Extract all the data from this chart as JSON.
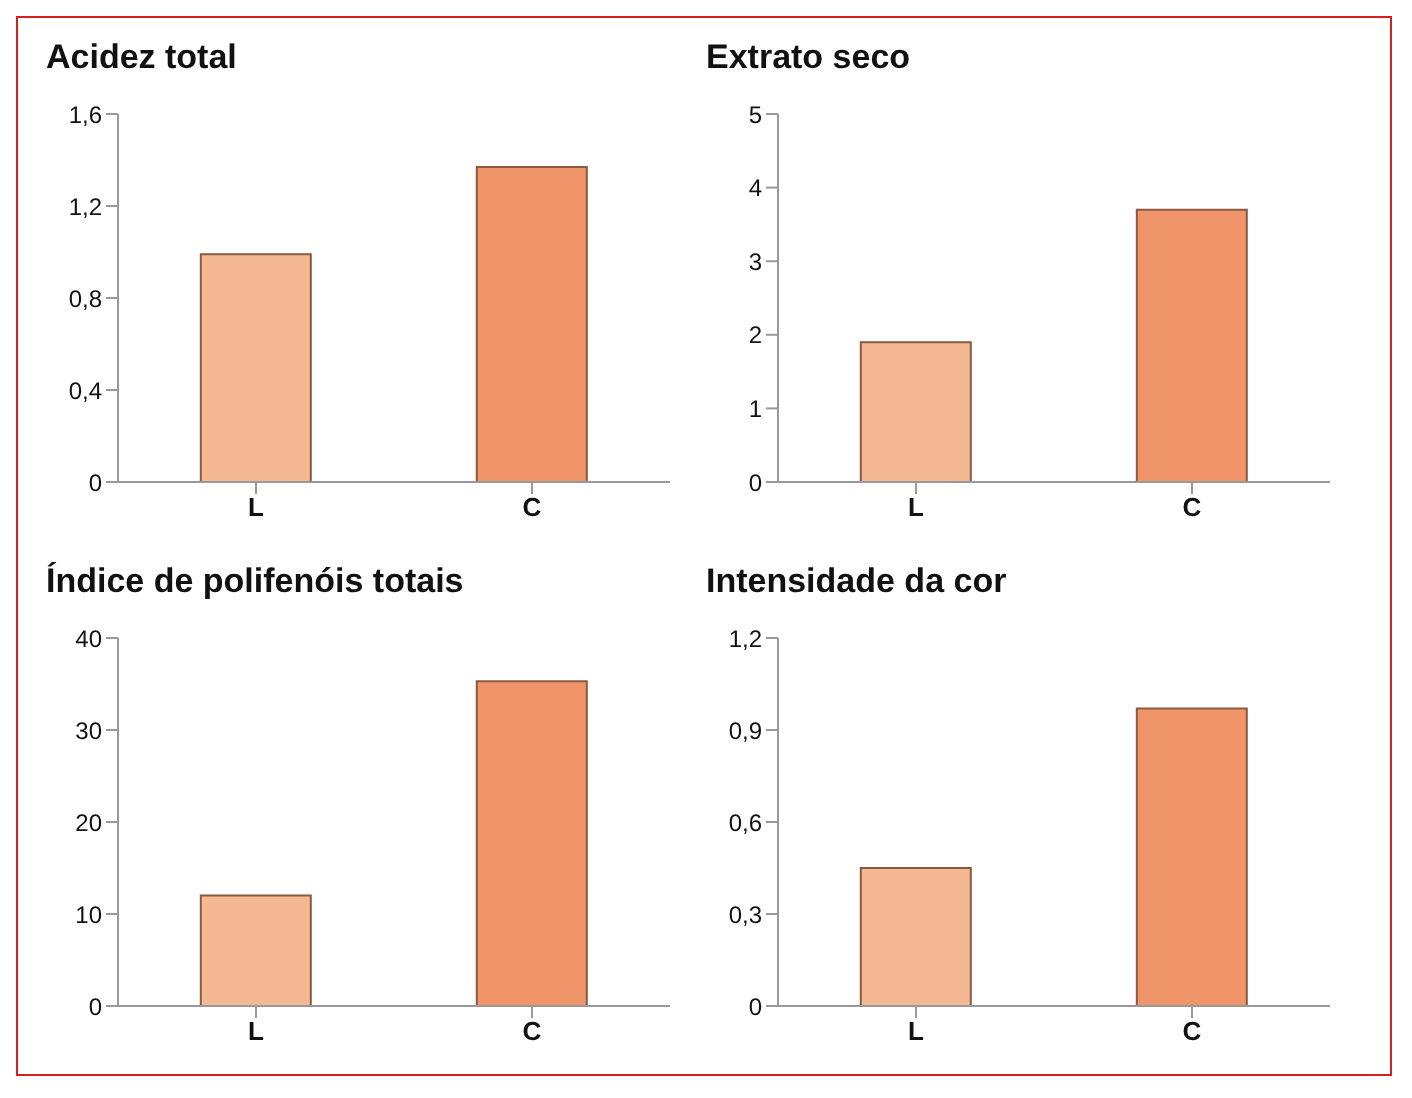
{
  "chart_data": [
    {
      "type": "bar",
      "title": "Acidez total",
      "categories": [
        "L",
        "C"
      ],
      "values": [
        0.99,
        1.37
      ],
      "colors": [
        "#f5b894",
        "#f0956a"
      ],
      "ylim": [
        0,
        1.6
      ],
      "yticks": [
        0,
        {
          "value": 0.4,
          "label": "0,4"
        },
        {
          "value": 0.8,
          "label": "0,8"
        },
        {
          "value": 1.2,
          "label": "1,2"
        },
        {
          "value": 1.6,
          "label": "1,6"
        }
      ],
      "grid": false,
      "legend": false
    },
    {
      "type": "bar",
      "title": "Extrato seco",
      "categories": [
        "L",
        "C"
      ],
      "values": [
        1.9,
        3.7
      ],
      "colors": [
        "#f5b894",
        "#f0956a"
      ],
      "ylim": [
        0,
        5
      ],
      "yticks": [
        0,
        1,
        2,
        3,
        4,
        5
      ],
      "grid": false,
      "legend": false
    },
    {
      "type": "bar",
      "title": "Índice de polifenóis totais",
      "categories": [
        "L",
        "C"
      ],
      "values": [
        12,
        35.3
      ],
      "colors": [
        "#f5b894",
        "#f0956a"
      ],
      "ylim": [
        0,
        40
      ],
      "yticks": [
        0,
        10,
        20,
        30,
        40
      ],
      "grid": false,
      "legend": false
    },
    {
      "type": "bar",
      "title": "Intensidade da cor",
      "categories": [
        "L",
        "C"
      ],
      "values": [
        0.45,
        0.97
      ],
      "colors": [
        "#f5b894",
        "#f0956a"
      ],
      "ylim": [
        0,
        1.2
      ],
      "yticks": [
        0,
        {
          "value": 0.3,
          "label": "0,3"
        },
        {
          "value": 0.6,
          "label": "0,6"
        },
        {
          "value": 0.9,
          "label": "0,9"
        },
        {
          "value": 1.2,
          "label": "1,2"
        }
      ],
      "grid": false,
      "legend": false
    }
  ]
}
